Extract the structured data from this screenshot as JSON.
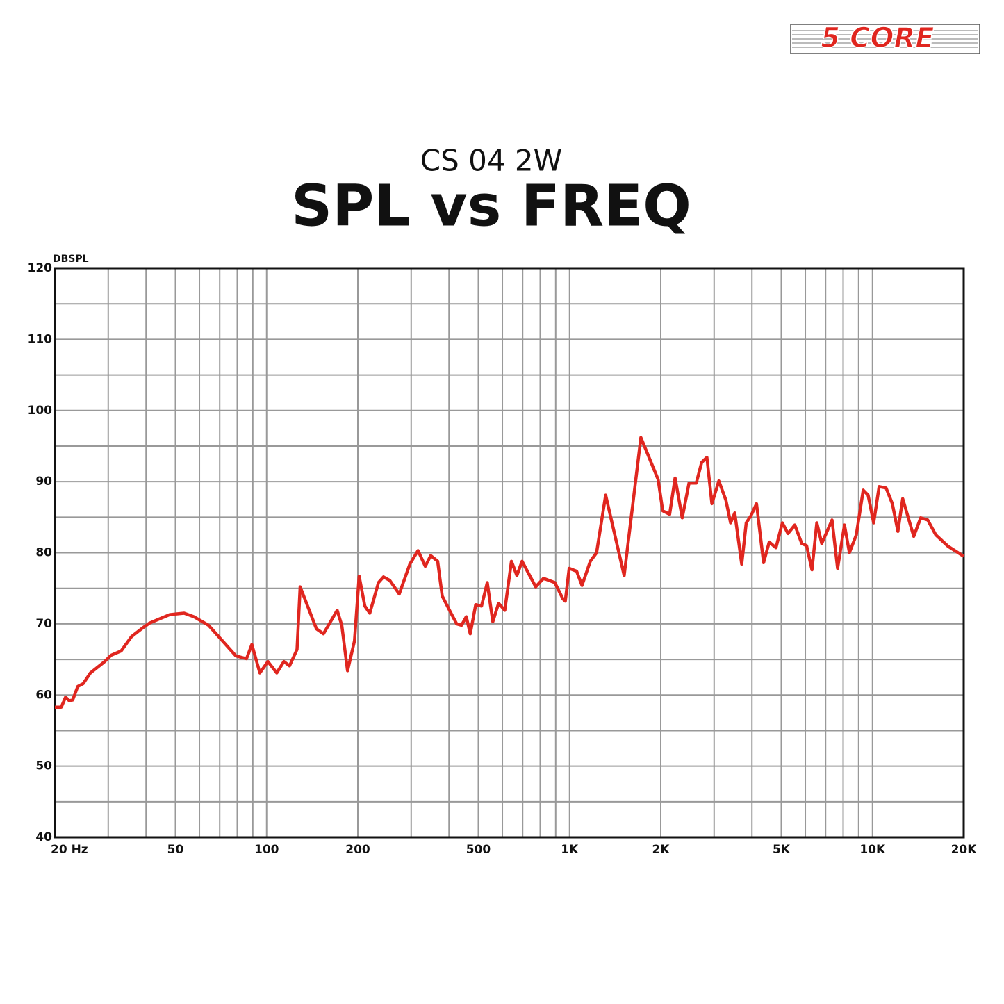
{
  "logo": "5 CORE",
  "chart_data": {
    "type": "line",
    "subtitle": "CS 04 2W",
    "title": "SPL vs FREQ",
    "y_label": "DBSPL",
    "xscale": "log",
    "xlim": [
      20,
      20000
    ],
    "ylim": [
      40,
      120
    ],
    "xticks": [
      {
        "value": 20,
        "label": "20 Hz"
      },
      50,
      100,
      200,
      500,
      {
        "value": 1000,
        "label": "1K"
      },
      {
        "value": 2000,
        "label": "2K"
      },
      {
        "value": 5000,
        "label": "5K"
      },
      {
        "value": 10000,
        "label": "10K"
      },
      {
        "value": 20000,
        "label": "20K"
      }
    ],
    "xminor": [
      30,
      40,
      60,
      70,
      80,
      90,
      300,
      400,
      600,
      700,
      800,
      900,
      3000,
      4000,
      6000,
      7000,
      8000,
      9000
    ],
    "yticks": [
      40,
      50,
      60,
      70,
      80,
      90,
      100,
      110,
      120
    ],
    "yminor": [
      45,
      55,
      65,
      75,
      85,
      95,
      105,
      115
    ],
    "grid": true,
    "series": [
      {
        "color": "#e0261f",
        "x": [
          20,
          21,
          21.7,
          22.3,
          22.9,
          23.8,
          24.8,
          26.2,
          29,
          30.7,
          33.1,
          35.8,
          38.9,
          41,
          44.3,
          47.9,
          50.6,
          53.4,
          57.5,
          64.3,
          71.5,
          79.1,
          85.8,
          89.4,
          95,
          101,
          108,
          114,
          119,
          126,
          129,
          146,
          154,
          171,
          177,
          185,
          195,
          202,
          211,
          219,
          234,
          243,
          255,
          274,
          297,
          316,
          334,
          348,
          367,
          380,
          404,
          424,
          440,
          456,
          470,
          490,
          512,
          535,
          558,
          583,
          611,
          643,
          670,
          697,
          773,
          820,
          894,
          951,
          968,
          997,
          1055,
          1099,
          1171,
          1228,
          1316,
          1514,
          1720,
          1960,
          2030,
          2140,
          2230,
          2355,
          2480,
          2620,
          2730,
          2840,
          2950,
          3110,
          3280,
          3400,
          3510,
          3700,
          3830,
          3970,
          4140,
          4370,
          4560,
          4800,
          5040,
          5260,
          5540,
          5840,
          6060,
          6310,
          6550,
          6800,
          7350,
          7670,
          8080,
          8390,
          8840,
          9320,
          9670,
          10090,
          10520,
          11090,
          11630,
          12130,
          12580,
          13680,
          14420,
          15210,
          16180,
          17770,
          20000
        ],
        "values": [
          58.3,
          58.3,
          59.7,
          59.2,
          59.3,
          61.2,
          61.6,
          63.1,
          64.6,
          65.6,
          66.2,
          68.2,
          69.4,
          70.1,
          70.7,
          71.3,
          71.4,
          71.5,
          71.0,
          69.8,
          67.6,
          65.5,
          65.1,
          67.1,
          63.1,
          64.7,
          63.1,
          64.7,
          64.1,
          66.4,
          75.2,
          69.3,
          68.6,
          71.9,
          69.8,
          63.4,
          67.6,
          76.7,
          72.5,
          71.5,
          75.8,
          76.6,
          76.1,
          74.2,
          78.4,
          80.3,
          78.1,
          79.6,
          78.8,
          73.9,
          71.7,
          70.0,
          69.8,
          71.0,
          68.6,
          72.7,
          72.5,
          75.8,
          70.3,
          72.9,
          71.9,
          78.8,
          76.8,
          78.8,
          75.2,
          76.4,
          75.8,
          73.5,
          73.2,
          77.8,
          77.4,
          75.4,
          78.8,
          80.0,
          88.1,
          76.8,
          96.2,
          90.3,
          85.9,
          85.4,
          90.5,
          84.9,
          89.8,
          89.8,
          92.7,
          93.4,
          86.9,
          90.1,
          87.4,
          84.2,
          85.6,
          78.4,
          84.2,
          85.2,
          86.9,
          78.6,
          81.5,
          80.7,
          84.2,
          82.7,
          83.9,
          81.3,
          81.0,
          77.6,
          84.2,
          81.3,
          84.6,
          77.8,
          83.9,
          80.0,
          82.5,
          88.8,
          88.1,
          84.2,
          89.3,
          89.1,
          86.9,
          83.0,
          87.6,
          82.3,
          84.9,
          84.6,
          82.5,
          80.9,
          79.5
        ]
      }
    ]
  }
}
